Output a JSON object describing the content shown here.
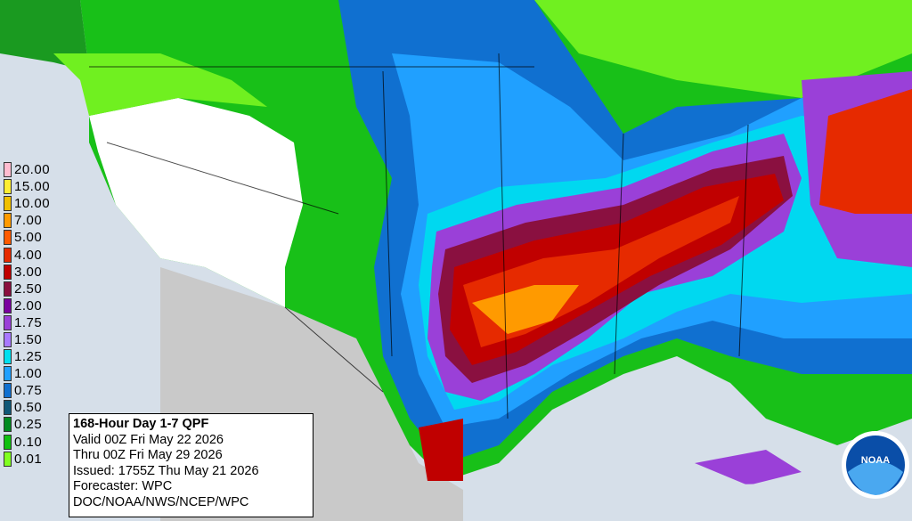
{
  "legend": {
    "entries": [
      {
        "label": "20.00",
        "color": "#ffbcd0"
      },
      {
        "label": "15.00",
        "color": "#ffee33"
      },
      {
        "label": "10.00",
        "color": "#f0c000"
      },
      {
        "label": "7.00",
        "color": "#ff9a00"
      },
      {
        "label": "5.00",
        "color": "#ff5a00"
      },
      {
        "label": "4.00",
        "color": "#e62a00"
      },
      {
        "label": "3.00",
        "color": "#c00000"
      },
      {
        "label": "2.50",
        "color": "#8a1040"
      },
      {
        "label": "2.00",
        "color": "#7a00a0"
      },
      {
        "label": "1.75",
        "color": "#9a40d8"
      },
      {
        "label": "1.50",
        "color": "#a878ff"
      },
      {
        "label": "1.25",
        "color": "#00e0f0"
      },
      {
        "label": "1.00",
        "color": "#20a0ff"
      },
      {
        "label": "0.75",
        "color": "#1070d0"
      },
      {
        "label": "0.50",
        "color": "#105878"
      },
      {
        "label": "0.25",
        "color": "#008a20"
      },
      {
        "label": "0.10",
        "color": "#10c010"
      },
      {
        "label": "0.01",
        "color": "#80ff20"
      }
    ]
  },
  "info": {
    "title": "168-Hour Day 1-7 QPF",
    "valid": "Valid 00Z Fri May 22 2026",
    "thru": "Thru 00Z Fri May 29 2026",
    "issued": "Issued: 1755Z Thu May 21 2026",
    "forecaster": "Forecaster: WPC",
    "credit": "DOC/NOAA/NWS/NCEP/WPC"
  },
  "logo_text": "NOAA"
}
